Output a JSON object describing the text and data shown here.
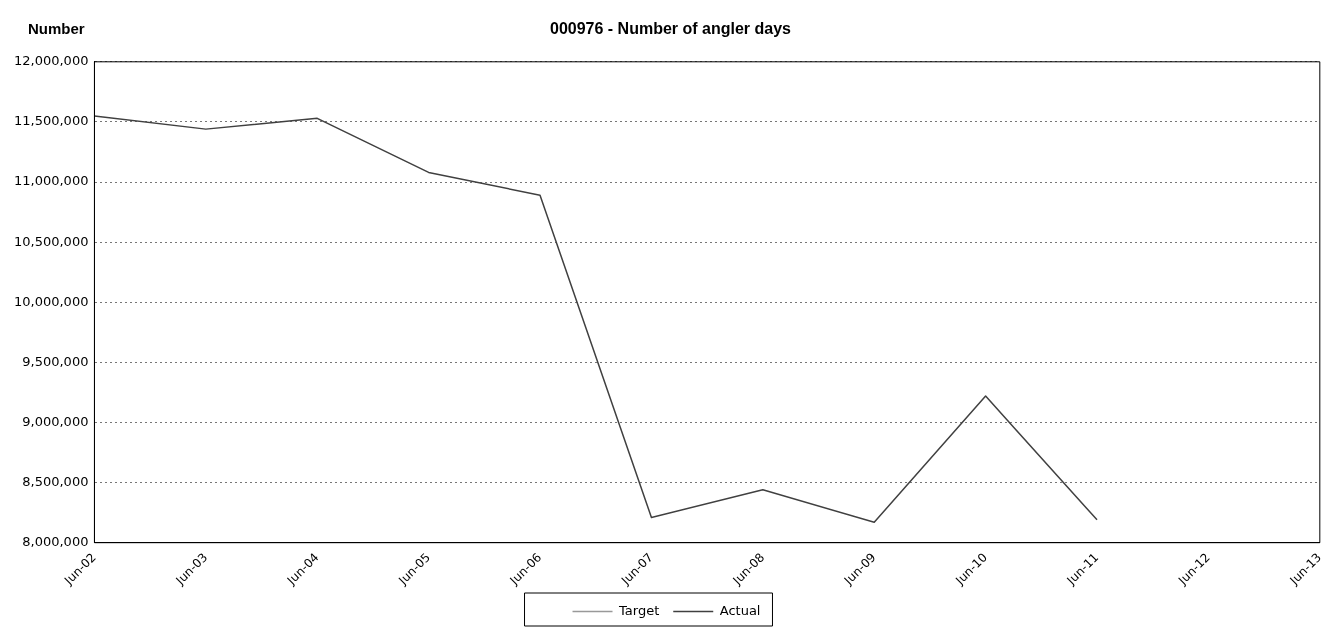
{
  "chart_data": {
    "type": "line",
    "title": "000976 - Number of angler days",
    "ylabel": "Number",
    "categories": [
      "Jun-02",
      "Jun-03",
      "Jun-04",
      "Jun-05",
      "Jun-06",
      "Jun-07",
      "Jun-08",
      "Jun-09",
      "Jun-10",
      "Jun-11",
      "Jun-12",
      "Jun-13"
    ],
    "series": [
      {
        "name": "Target",
        "color": "#999999",
        "line_style": "dotted",
        "values": [
          null,
          null,
          null,
          null,
          null,
          null,
          null,
          null,
          null,
          null,
          null,
          null
        ]
      },
      {
        "name": "Actual",
        "color": "#404040",
        "line_style": "solid",
        "values": [
          11550000,
          11440000,
          11530000,
          11080000,
          10890000,
          8210000,
          8440000,
          8170000,
          9220000,
          8190000,
          null,
          null
        ]
      }
    ],
    "ylim": [
      8000000,
      12000000
    ],
    "yticks": [
      {
        "value": 8000000,
        "label": "8,000,000"
      },
      {
        "value": 8500000,
        "label": "8,500,000"
      },
      {
        "value": 9000000,
        "label": "9,000,000"
      },
      {
        "value": 9500000,
        "label": "9,500,000"
      },
      {
        "value": 10000000,
        "label": "10,000,000"
      },
      {
        "value": 10500000,
        "label": "10,500,000"
      },
      {
        "value": 11000000,
        "label": "11,000,000"
      },
      {
        "value": 11500000,
        "label": "11,500,000"
      },
      {
        "value": 12000000,
        "label": "12,000,000"
      }
    ],
    "grid": "y",
    "legend": "bottom",
    "marker": "none"
  }
}
